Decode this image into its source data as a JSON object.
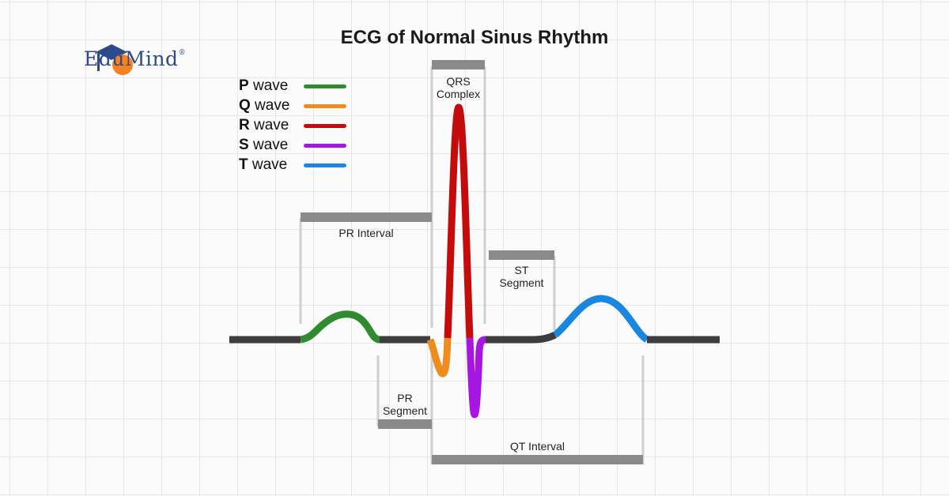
{
  "title": "ECG of Normal Sinus Rhythm",
  "brand": {
    "name": "EduMind",
    "mark": "®",
    "icon": "graduation-cap-icon"
  },
  "legend": [
    {
      "letter": "P",
      "rest": " wave",
      "color": "#2e8b2e"
    },
    {
      "letter": "Q",
      "rest": " wave",
      "color": "#ef8c1e"
    },
    {
      "letter": "R",
      "rest": " wave",
      "color": "#c40c0c"
    },
    {
      "letter": "S",
      "rest": " wave",
      "color": "#a715e0"
    },
    {
      "letter": "T",
      "rest": " wave",
      "color": "#1a86e0"
    }
  ],
  "labels": {
    "qrs_complex_line1": "QRS",
    "qrs_complex_line2": "Complex",
    "pr_interval": "PR Interval",
    "st_segment_line1": "ST",
    "st_segment_line2": "Segment",
    "pr_segment_line1": "PR",
    "pr_segment_line2": "Segment",
    "qt_interval": "QT Interval"
  },
  "colors": {
    "baseline": "#3d3d3d",
    "bracket": "#8a8a8a",
    "guide": "#cfcfcf"
  }
}
